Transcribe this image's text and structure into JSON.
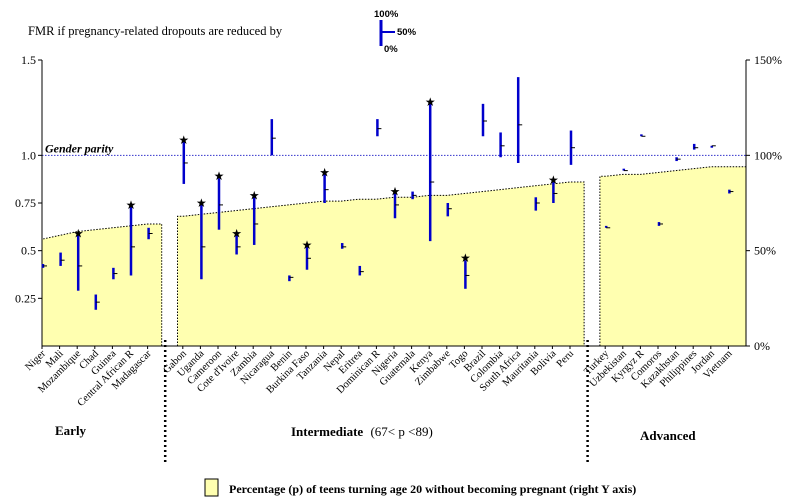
{
  "chart_data": {
    "type": "area",
    "legend_top": {
      "label": "FMR if pregnancy-related dropouts are reduced by",
      "key_top": "100%",
      "key_mid": "50%",
      "key_bottom": "0%"
    },
    "legend_bottom": "Percentage (p) of teens turning age 20 without becoming pregnant (right Y axis)",
    "parity_label": "Gender parity",
    "left_axis": {
      "ylim": [
        0,
        1.5
      ],
      "ticks": [
        {
          "v": 0.25,
          "label": "0.25"
        },
        {
          "v": 0.5,
          "label": "0.5"
        },
        {
          "v": 0.75,
          "label": "0.75"
        },
        {
          "v": 1.0,
          "label": "1.0"
        },
        {
          "v": 1.5,
          "label": "1.5"
        }
      ]
    },
    "right_axis": {
      "ylim": [
        0,
        150
      ],
      "ticks": [
        {
          "v": 0,
          "label": "0%"
        },
        {
          "v": 50,
          "label": "50%"
        },
        {
          "v": 100,
          "label": "100%"
        },
        {
          "v": 150,
          "label": "150%"
        }
      ]
    },
    "groups": [
      {
        "label": "Early",
        "range": ""
      },
      {
        "label": "Intermediate",
        "range": "(67< p <89)"
      },
      {
        "label": "Advanced",
        "range": ""
      }
    ],
    "countries": [
      {
        "name": "Niger",
        "group": 0,
        "pct": 56,
        "lo": 0.41,
        "mid": 0.42,
        "hi": 0.43,
        "star": false
      },
      {
        "name": "Mali",
        "group": 0,
        "pct": 58,
        "lo": 0.42,
        "mid": 0.45,
        "hi": 0.49,
        "star": false
      },
      {
        "name": "Mozambique",
        "group": 0,
        "pct": 60,
        "lo": 0.29,
        "mid": 0.42,
        "hi": 0.58,
        "star": true
      },
      {
        "name": "Chad",
        "group": 0,
        "pct": 61,
        "lo": 0.19,
        "mid": 0.23,
        "hi": 0.27,
        "star": false
      },
      {
        "name": "Guinea",
        "group": 0,
        "pct": 62,
        "lo": 0.35,
        "mid": 0.38,
        "hi": 0.41,
        "star": false
      },
      {
        "name": "Central African R",
        "group": 0,
        "pct": 63,
        "lo": 0.37,
        "mid": 0.52,
        "hi": 0.73,
        "star": true
      },
      {
        "name": "Madagascar",
        "group": 0,
        "pct": 64,
        "lo": 0.56,
        "mid": 0.59,
        "hi": 0.62,
        "star": false
      },
      {
        "name": "Gabon",
        "group": 1,
        "pct": 68,
        "lo": 0.85,
        "mid": 0.96,
        "hi": 1.07,
        "star": true
      },
      {
        "name": "Uganda",
        "group": 1,
        "pct": 69,
        "lo": 0.35,
        "mid": 0.52,
        "hi": 0.74,
        "star": true
      },
      {
        "name": "Cameroon",
        "group": 1,
        "pct": 70,
        "lo": 0.61,
        "mid": 0.74,
        "hi": 0.88,
        "star": true
      },
      {
        "name": "Cote d'Ivoire",
        "group": 1,
        "pct": 71,
        "lo": 0.48,
        "mid": 0.52,
        "hi": 0.58,
        "star": true
      },
      {
        "name": "Zambia",
        "group": 1,
        "pct": 72,
        "lo": 0.53,
        "mid": 0.64,
        "hi": 0.78,
        "star": true
      },
      {
        "name": "Nicaragua",
        "group": 1,
        "pct": 73,
        "lo": 1.0,
        "mid": 1.09,
        "hi": 1.19,
        "star": false
      },
      {
        "name": "Benin",
        "group": 1,
        "pct": 74,
        "lo": 0.34,
        "mid": 0.36,
        "hi": 0.37,
        "star": false
      },
      {
        "name": "Burkina Faso",
        "group": 1,
        "pct": 75,
        "lo": 0.4,
        "mid": 0.46,
        "hi": 0.52,
        "star": true
      },
      {
        "name": "Tanzania",
        "group": 1,
        "pct": 76,
        "lo": 0.75,
        "mid": 0.82,
        "hi": 0.9,
        "star": true
      },
      {
        "name": "Nepal",
        "group": 1,
        "pct": 76,
        "lo": 0.51,
        "mid": 0.52,
        "hi": 0.54,
        "star": false
      },
      {
        "name": "Eritrea",
        "group": 1,
        "pct": 77,
        "lo": 0.37,
        "mid": 0.39,
        "hi": 0.42,
        "star": false
      },
      {
        "name": "Dominican R",
        "group": 1,
        "pct": 77,
        "lo": 1.1,
        "mid": 1.14,
        "hi": 1.19,
        "star": false
      },
      {
        "name": "Nigeria",
        "group": 1,
        "pct": 78,
        "lo": 0.67,
        "mid": 0.74,
        "hi": 0.8,
        "star": true
      },
      {
        "name": "Guatemala",
        "group": 1,
        "pct": 78,
        "lo": 0.77,
        "mid": 0.79,
        "hi": 0.81,
        "star": false
      },
      {
        "name": "Kenya",
        "group": 1,
        "pct": 79,
        "lo": 0.55,
        "mid": 0.86,
        "hi": 1.27,
        "star": true
      },
      {
        "name": "Zimbabwe",
        "group": 1,
        "pct": 79,
        "lo": 0.68,
        "mid": 0.72,
        "hi": 0.75,
        "star": false
      },
      {
        "name": "Togo",
        "group": 1,
        "pct": 80,
        "lo": 0.3,
        "mid": 0.37,
        "hi": 0.45,
        "star": true
      },
      {
        "name": "Brazil",
        "group": 1,
        "pct": 81,
        "lo": 1.1,
        "mid": 1.18,
        "hi": 1.27,
        "star": false
      },
      {
        "name": "Colombia",
        "group": 1,
        "pct": 82,
        "lo": 0.99,
        "mid": 1.05,
        "hi": 1.12,
        "star": false
      },
      {
        "name": "South Africa",
        "group": 1,
        "pct": 83,
        "lo": 0.96,
        "mid": 1.16,
        "hi": 1.41,
        "star": false
      },
      {
        "name": "Mauritania",
        "group": 1,
        "pct": 84,
        "lo": 0.71,
        "mid": 0.75,
        "hi": 0.78,
        "star": false
      },
      {
        "name": "Bolivia",
        "group": 1,
        "pct": 85,
        "lo": 0.75,
        "mid": 0.8,
        "hi": 0.86,
        "star": true
      },
      {
        "name": "Peru",
        "group": 1,
        "pct": 86,
        "lo": 0.95,
        "mid": 1.04,
        "hi": 1.13,
        "star": false
      },
      {
        "name": "Turkey",
        "group": 2,
        "pct": 89,
        "lo": 0.62,
        "mid": 0.62,
        "hi": 0.63,
        "star": false
      },
      {
        "name": "Uzbekistan",
        "group": 2,
        "pct": 90,
        "lo": 0.92,
        "mid": 0.92,
        "hi": 0.93,
        "star": false
      },
      {
        "name": "Kyrgyz R",
        "group": 2,
        "pct": 90,
        "lo": 1.1,
        "mid": 1.1,
        "hi": 1.11,
        "star": false
      },
      {
        "name": "Comoros",
        "group": 2,
        "pct": 91,
        "lo": 0.63,
        "mid": 0.64,
        "hi": 0.65,
        "star": false
      },
      {
        "name": "Kazakhstan",
        "group": 2,
        "pct": 92,
        "lo": 0.97,
        "mid": 0.98,
        "hi": 0.99,
        "star": false
      },
      {
        "name": "Philippines",
        "group": 2,
        "pct": 93,
        "lo": 1.03,
        "mid": 1.04,
        "hi": 1.06,
        "star": false
      },
      {
        "name": "Jordan",
        "group": 2,
        "pct": 94,
        "lo": 1.04,
        "mid": 1.05,
        "hi": 1.05,
        "star": false
      },
      {
        "name": "Vietnam",
        "group": 2,
        "pct": 94,
        "lo": 0.8,
        "mid": 0.81,
        "hi": 0.82,
        "star": false
      }
    ],
    "colors": {
      "fill": "#ffffb0",
      "bar": "#0000cc",
      "parity": "#3333cc",
      "axis": "#000000"
    }
  }
}
